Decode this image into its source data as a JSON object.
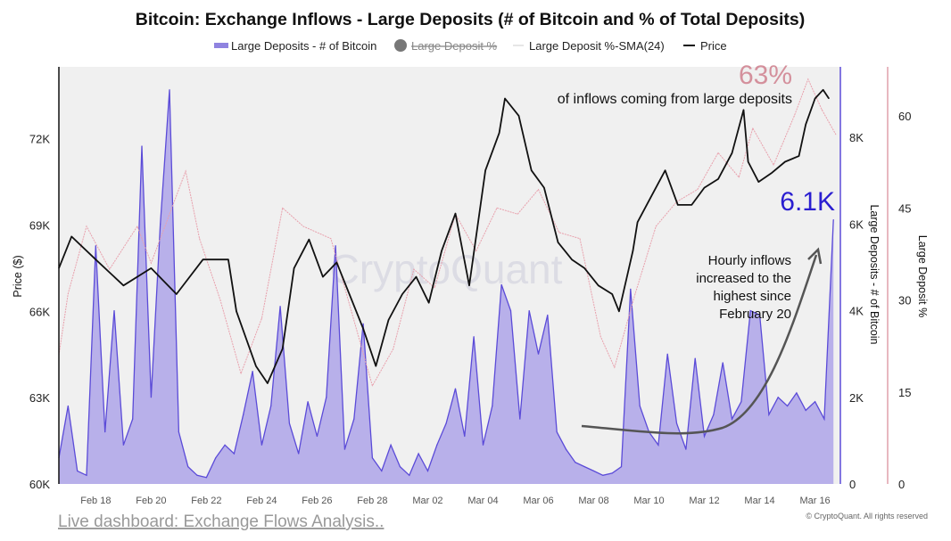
{
  "chart_data": {
    "type": "line",
    "title": "Bitcoin: Exchange Inflows - Large Deposits (# of Bitcoin and % of Total Deposits)",
    "legend": {
      "placement": "top",
      "items": [
        {
          "label": "Large Deposits - # of Bitcoin",
          "color": "#6a5acd",
          "style": "area"
        },
        {
          "label": "Large Deposit %",
          "color": "#777777",
          "style": "dot",
          "hidden": true
        },
        {
          "label": "Large Deposit %-SMA(24)",
          "color": "#e8a0ac",
          "style": "thin-line"
        },
        {
          "label": "Price",
          "color": "#111111",
          "style": "line"
        }
      ]
    },
    "x_ticks": [
      "Feb 18",
      "Feb 20",
      "Feb 22",
      "Feb 24",
      "Feb 26",
      "Feb 28",
      "Mar 02",
      "Mar 04",
      "Mar 06",
      "Mar 08",
      "Mar 10",
      "Mar 12",
      "Mar 14",
      "Mar 16"
    ],
    "xlim": [
      "Feb 16 16:00",
      "Mar 16 22:00"
    ],
    "axes": {
      "price": {
        "label": "Price ($)",
        "ticks": [
          "60K",
          "63K",
          "66K",
          "69K",
          "72K"
        ],
        "range": [
          60000,
          74500
        ],
        "side": "left"
      },
      "deposits": {
        "label": "Large Deposits - # of Bitcoin",
        "ticks": [
          "0",
          "2K",
          "4K",
          "6K",
          "8K"
        ],
        "range": [
          0,
          9630
        ],
        "side": "right"
      },
      "percent": {
        "label": "Large Deposit %",
        "ticks": [
          "0",
          "15",
          "30",
          "45",
          "60"
        ],
        "range": [
          0,
          68
        ],
        "side": "right"
      }
    },
    "grid": false,
    "series": [
      {
        "name": "Price",
        "axis": "price",
        "color": "#111111",
        "points": [
          [
            "Feb 16 16:00",
            67500
          ],
          [
            "Feb 17 03:00",
            68600
          ],
          [
            "Feb 18 00:00",
            67800
          ],
          [
            "Feb 19 00:00",
            66900
          ],
          [
            "Feb 20 00:00",
            67500
          ],
          [
            "Feb 20 22:00",
            66600
          ],
          [
            "Feb 21 21:00",
            67800
          ],
          [
            "Feb 22 19:00",
            67800
          ],
          [
            "Feb 23 02:00",
            66000
          ],
          [
            "Feb 23 19:00",
            64100
          ],
          [
            "Feb 24 05:00",
            63500
          ],
          [
            "Feb 24 18:00",
            64700
          ],
          [
            "Feb 25 04:00",
            67500
          ],
          [
            "Feb 25 17:00",
            68500
          ],
          [
            "Feb 26 05:00",
            67200
          ],
          [
            "Feb 26 17:00",
            67700
          ],
          [
            "Feb 27 04:00",
            66600
          ],
          [
            "Feb 27 16:00",
            65400
          ],
          [
            "Feb 28 03:00",
            64100
          ],
          [
            "Feb 28 14:00",
            65700
          ],
          [
            "Mar 01 02:00",
            66600
          ],
          [
            "Mar 01 14:00",
            67200
          ],
          [
            "Mar 02 01:00",
            66300
          ],
          [
            "Mar 02 12:00",
            68100
          ],
          [
            "Mar 03 00:00",
            69400
          ],
          [
            "Mar 03 12:00",
            66900
          ],
          [
            "Mar 04 02:00",
            70900
          ],
          [
            "Mar 04 14:00",
            72200
          ],
          [
            "Mar 04 19:00",
            73400
          ],
          [
            "Mar 05 07:00",
            72800
          ],
          [
            "Mar 05 18:00",
            70900
          ],
          [
            "Mar 06 05:00",
            70300
          ],
          [
            "Mar 06 17:00",
            68400
          ],
          [
            "Mar 07 05:00",
            67800
          ],
          [
            "Mar 07 16:00",
            67500
          ],
          [
            "Mar 08 04:00",
            66900
          ],
          [
            "Mar 08 16:00",
            66600
          ],
          [
            "Mar 08 22:00",
            66000
          ],
          [
            "Mar 09 10:00",
            68100
          ],
          [
            "Mar 09 14:00",
            69100
          ],
          [
            "Mar 10 02:00",
            70000
          ],
          [
            "Mar 10 14:00",
            70900
          ],
          [
            "Mar 11 01:00",
            69700
          ],
          [
            "Mar 11 13:00",
            69700
          ],
          [
            "Mar 12 00:00",
            70300
          ],
          [
            "Mar 12 12:00",
            70600
          ],
          [
            "Mar 13 00:00",
            71500
          ],
          [
            "Mar 13 10:00",
            73000
          ],
          [
            "Mar 13 14:00",
            71200
          ],
          [
            "Mar 13 23:00",
            70500
          ],
          [
            "Mar 14 10:00",
            70800
          ],
          [
            "Mar 14 22:00",
            71200
          ],
          [
            "Mar 15 10:00",
            71400
          ],
          [
            "Mar 15 16:00",
            72500
          ],
          [
            "Mar 16 00:00",
            73400
          ],
          [
            "Mar 16 07:00",
            73700
          ],
          [
            "Mar 16 12:00",
            73400
          ]
        ]
      },
      {
        "name": "Large Deposit %-SMA(24)",
        "axis": "percent",
        "color": "#e8a0ac",
        "points": [
          [
            "Feb 16 16:00",
            21
          ],
          [
            "Feb 17 00:00",
            31
          ],
          [
            "Feb 17 16:00",
            42
          ],
          [
            "Feb 18 12:00",
            35
          ],
          [
            "Feb 19 12:00",
            42
          ],
          [
            "Feb 20 00:00",
            36
          ],
          [
            "Feb 21 06:00",
            51
          ],
          [
            "Feb 21 18:00",
            40
          ],
          [
            "Feb 22 12:00",
            30
          ],
          [
            "Feb 23 06:00",
            18
          ],
          [
            "Feb 24 00:00",
            27
          ],
          [
            "Feb 24 18:00",
            45
          ],
          [
            "Feb 25 12:00",
            42
          ],
          [
            "Feb 26 12:00",
            40
          ],
          [
            "Feb 27 06:00",
            28
          ],
          [
            "Feb 28 00:00",
            16
          ],
          [
            "Feb 28 18:00",
            22
          ],
          [
            "Mar 01 12:00",
            35
          ],
          [
            "Mar 02 06:00",
            32
          ],
          [
            "Mar 03 00:00",
            44
          ],
          [
            "Mar 03 18:00",
            38
          ],
          [
            "Mar 04 12:00",
            45
          ],
          [
            "Mar 05 06:00",
            44
          ],
          [
            "Mar 06 00:00",
            48
          ],
          [
            "Mar 06 18:00",
            41
          ],
          [
            "Mar 07 12:00",
            40
          ],
          [
            "Mar 08 06:00",
            24
          ],
          [
            "Mar 08 18:00",
            19
          ],
          [
            "Mar 09 12:00",
            31
          ],
          [
            "Mar 10 06:00",
            42
          ],
          [
            "Mar 11 00:00",
            46
          ],
          [
            "Mar 11 18:00",
            48
          ],
          [
            "Mar 12 12:00",
            54
          ],
          [
            "Mar 13 06:00",
            50
          ],
          [
            "Mar 13 18:00",
            58
          ],
          [
            "Mar 14 12:00",
            52
          ],
          [
            "Mar 15 06:00",
            60
          ],
          [
            "Mar 15 18:00",
            66
          ],
          [
            "Mar 16 06:00",
            61
          ],
          [
            "Mar 16 18:00",
            57
          ]
        ]
      },
      {
        "name": "Large Deposits - # of Bitcoin",
        "axis": "deposits",
        "color": "#5b4bd8",
        "points": [
          [
            "Feb 16 16:00",
            600
          ],
          [
            "Feb 17 00:00",
            1800
          ],
          [
            "Feb 17 08:00",
            300
          ],
          [
            "Feb 17 16:00",
            200
          ],
          [
            "Feb 18 00:00",
            5500
          ],
          [
            "Feb 18 08:00",
            1200
          ],
          [
            "Feb 18 16:00",
            4000
          ],
          [
            "Feb 19 00:00",
            900
          ],
          [
            "Feb 19 08:00",
            1500
          ],
          [
            "Feb 19 16:00",
            7800
          ],
          [
            "Feb 20 00:00",
            2000
          ],
          [
            "Feb 20 08:00",
            6000
          ],
          [
            "Feb 20 16:00",
            9100
          ],
          [
            "Feb 21 00:00",
            1200
          ],
          [
            "Feb 21 08:00",
            400
          ],
          [
            "Feb 21 16:00",
            200
          ],
          [
            "Feb 22 00:00",
            150
          ],
          [
            "Feb 22 08:00",
            600
          ],
          [
            "Feb 22 16:00",
            900
          ],
          [
            "Feb 23 00:00",
            700
          ],
          [
            "Feb 23 08:00",
            1600
          ],
          [
            "Feb 23 16:00",
            2600
          ],
          [
            "Feb 24 00:00",
            900
          ],
          [
            "Feb 24 08:00",
            1800
          ],
          [
            "Feb 24 16:00",
            4100
          ],
          [
            "Feb 25 00:00",
            1400
          ],
          [
            "Feb 25 08:00",
            700
          ],
          [
            "Feb 25 16:00",
            1900
          ],
          [
            "Feb 26 00:00",
            1100
          ],
          [
            "Feb 26 08:00",
            2000
          ],
          [
            "Feb 26 16:00",
            5500
          ],
          [
            "Feb 27 00:00",
            800
          ],
          [
            "Feb 27 08:00",
            1500
          ],
          [
            "Feb 27 16:00",
            3700
          ],
          [
            "Feb 28 00:00",
            600
          ],
          [
            "Feb 28 08:00",
            300
          ],
          [
            "Feb 28 16:00",
            900
          ],
          [
            "Mar 01 00:00",
            400
          ],
          [
            "Mar 01 08:00",
            200
          ],
          [
            "Mar 01 16:00",
            700
          ],
          [
            "Mar 02 00:00",
            300
          ],
          [
            "Mar 02 08:00",
            900
          ],
          [
            "Mar 02 16:00",
            1400
          ],
          [
            "Mar 03 00:00",
            2200
          ],
          [
            "Mar 03 08:00",
            1100
          ],
          [
            "Mar 03 16:00",
            3400
          ],
          [
            "Mar 04 00:00",
            900
          ],
          [
            "Mar 04 08:00",
            1800
          ],
          [
            "Mar 04 16:00",
            4600
          ],
          [
            "Mar 05 00:00",
            4000
          ],
          [
            "Mar 05 08:00",
            1500
          ],
          [
            "Mar 05 16:00",
            4000
          ],
          [
            "Mar 06 00:00",
            3000
          ],
          [
            "Mar 06 08:00",
            3900
          ],
          [
            "Mar 06 16:00",
            1200
          ],
          [
            "Mar 07 00:00",
            800
          ],
          [
            "Mar 07 08:00",
            500
          ],
          [
            "Mar 07 16:00",
            400
          ],
          [
            "Mar 08 00:00",
            300
          ],
          [
            "Mar 08 08:00",
            200
          ],
          [
            "Mar 08 16:00",
            250
          ],
          [
            "Mar 09 00:00",
            400
          ],
          [
            "Mar 09 08:00",
            4500
          ],
          [
            "Mar 09 16:00",
            1800
          ],
          [
            "Mar 10 00:00",
            1200
          ],
          [
            "Mar 10 08:00",
            900
          ],
          [
            "Mar 10 16:00",
            3000
          ],
          [
            "Mar 11 00:00",
            1400
          ],
          [
            "Mar 11 08:00",
            800
          ],
          [
            "Mar 11 16:00",
            2900
          ],
          [
            "Mar 12 00:00",
            1100
          ],
          [
            "Mar 12 08:00",
            1600
          ],
          [
            "Mar 12 16:00",
            2800
          ],
          [
            "Mar 13 00:00",
            1500
          ],
          [
            "Mar 13 08:00",
            1900
          ],
          [
            "Mar 13 16:00",
            4000
          ],
          [
            "Mar 14 00:00",
            3900
          ],
          [
            "Mar 14 08:00",
            1600
          ],
          [
            "Mar 14 16:00",
            2000
          ],
          [
            "Mar 15 00:00",
            1800
          ],
          [
            "Mar 15 08:00",
            2100
          ],
          [
            "Mar 15 16:00",
            1700
          ],
          [
            "Mar 16 00:00",
            1900
          ],
          [
            "Mar 16 08:00",
            1500
          ],
          [
            "Mar 16 16:00",
            6100
          ]
        ]
      }
    ],
    "annotations": {
      "pct_value": "63%",
      "pct_caption": "of inflows coming from large deposits",
      "deposit_value": "6.1K",
      "hourly_note": [
        "Hourly inflows",
        "increased to the",
        "highest since",
        "February 20"
      ]
    },
    "watermark": "CryptoQuant"
  },
  "footer": {
    "link": "Live dashboard: Exchange Flows Analysis..",
    "copyright": "© CryptoQuant. All rights reserved"
  }
}
